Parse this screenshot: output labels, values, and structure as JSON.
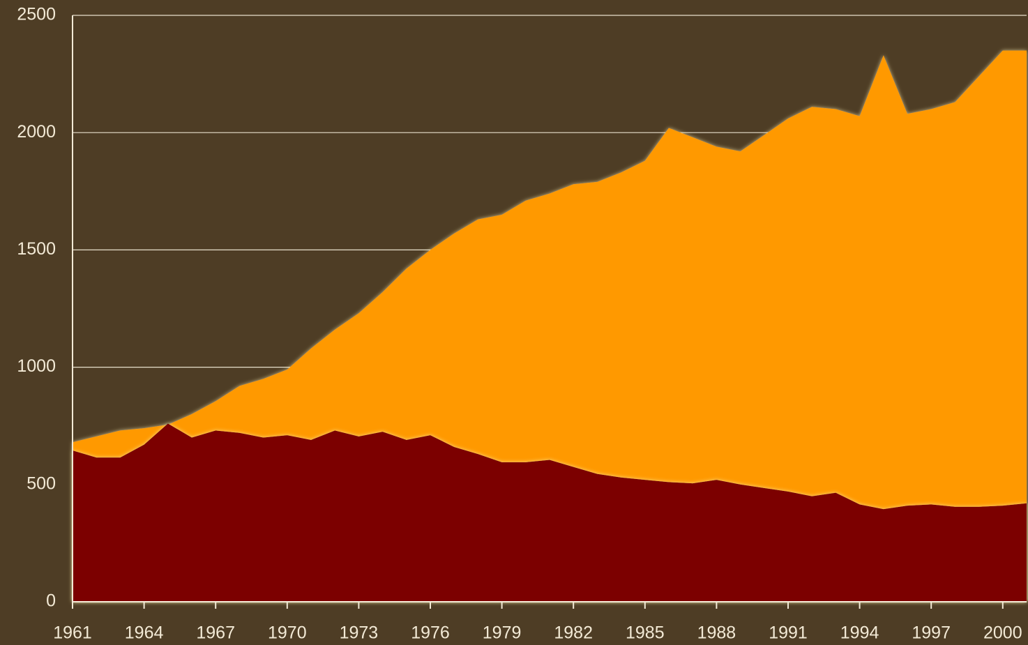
{
  "chart_data": {
    "type": "area",
    "x": [
      1961,
      1962,
      1963,
      1964,
      1965,
      1966,
      1967,
      1968,
      1969,
      1970,
      1971,
      1972,
      1973,
      1974,
      1975,
      1976,
      1977,
      1978,
      1979,
      1980,
      1981,
      1982,
      1983,
      1984,
      1985,
      1986,
      1987,
      1988,
      1989,
      1990,
      1991,
      1992,
      1993,
      1994,
      1995,
      1996,
      1997,
      1998,
      1999,
      2000,
      2001
    ],
    "series": [
      {
        "color": "#ff9900",
        "values": [
          680,
          705,
          730,
          740,
          755,
          800,
          855,
          920,
          950,
          990,
          1080,
          1160,
          1230,
          1320,
          1420,
          1500,
          1570,
          1630,
          1650,
          1710,
          1740,
          1780,
          1790,
          1830,
          1880,
          2020,
          1980,
          1940,
          1920,
          1990,
          2060,
          2110,
          2100,
          2070,
          2330,
          2080,
          2100,
          2130,
          2240,
          2350,
          2350
        ]
      },
      {
        "color": "#7b0000",
        "values": [
          645,
          615,
          615,
          670,
          760,
          700,
          730,
          720,
          700,
          710,
          690,
          730,
          705,
          725,
          690,
          710,
          660,
          630,
          595,
          595,
          605,
          575,
          545,
          530,
          520,
          510,
          505,
          520,
          500,
          485,
          470,
          450,
          465,
          415,
          395,
          410,
          415,
          405,
          405,
          410,
          420
        ]
      }
    ],
    "xlim": [
      1961,
      2001
    ],
    "xticks": [
      1961,
      1964,
      1967,
      1970,
      1973,
      1976,
      1979,
      1982,
      1985,
      1988,
      1991,
      1994,
      1997,
      2000
    ],
    "ylim": [
      0,
      2500
    ],
    "yticks": [
      0,
      500,
      1000,
      1500,
      2000,
      2500
    ],
    "grid": true
  }
}
